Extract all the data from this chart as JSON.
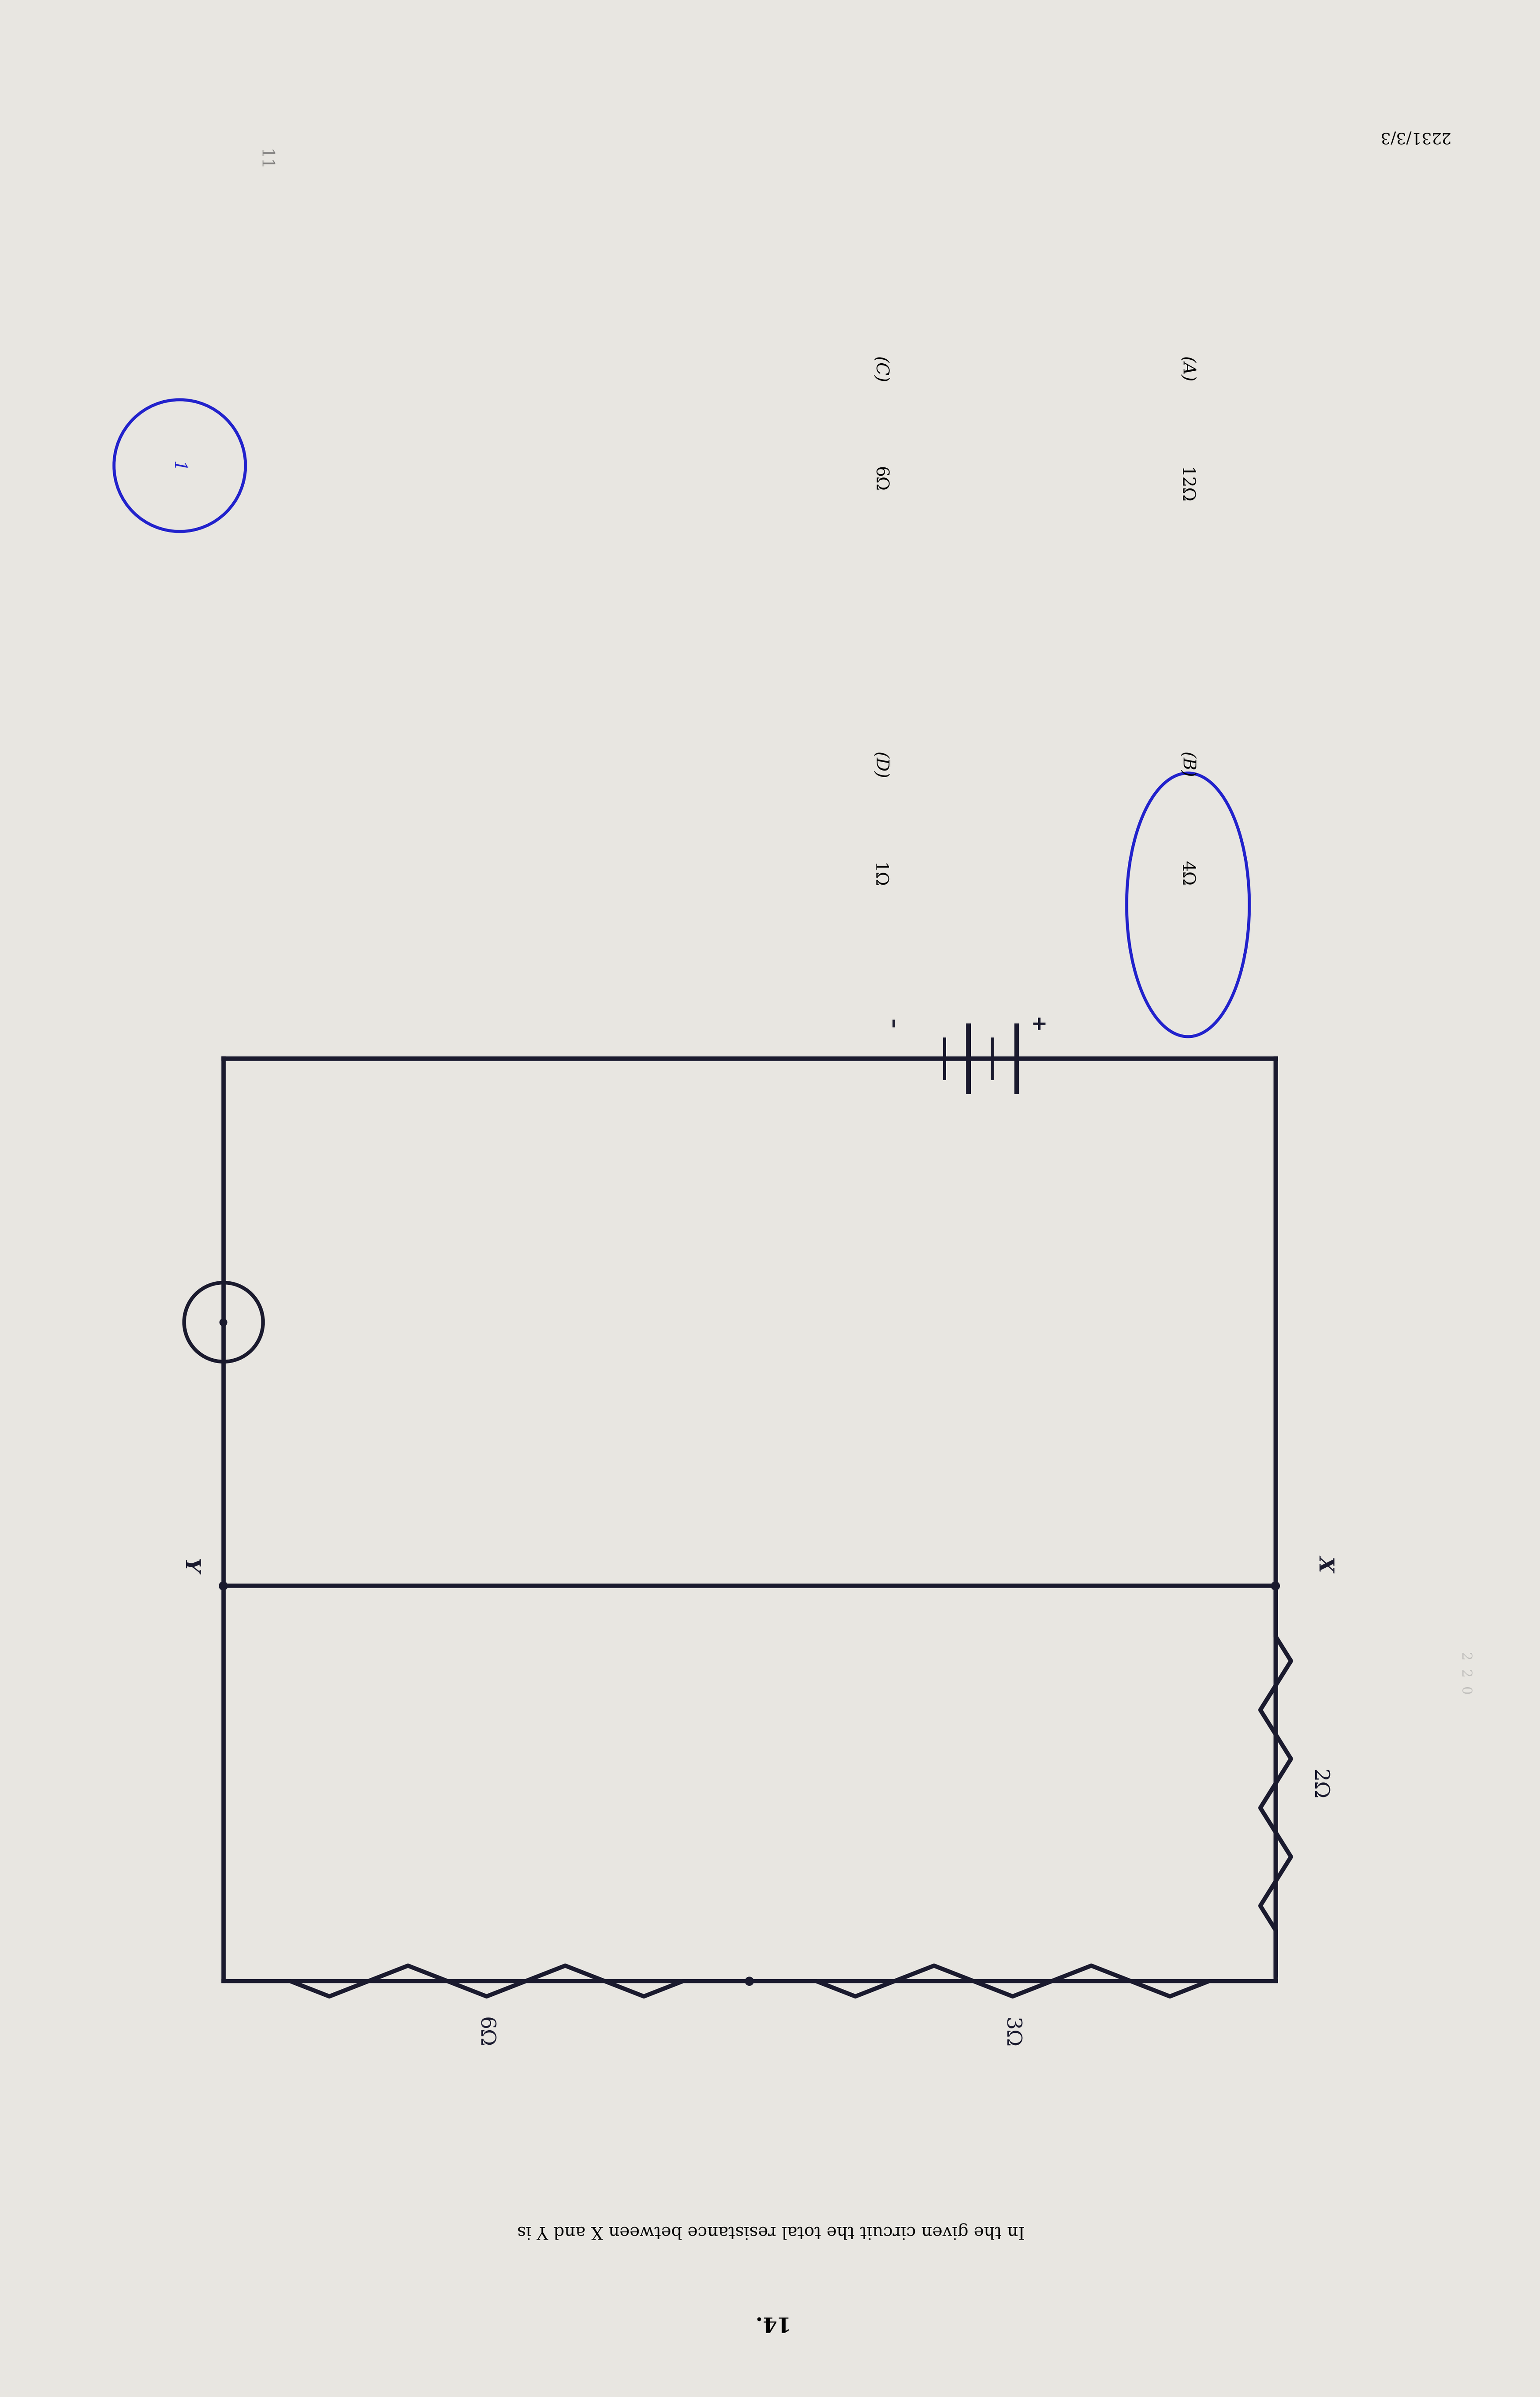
{
  "bg_color": "#e8e6e1",
  "question_number": "14.",
  "question_text": "In the given circuit the total resistance between X and Y is",
  "options": [
    {
      "label": "(A)",
      "value": "12Ω"
    },
    {
      "label": "(B)",
      "value": "4Ω"
    },
    {
      "label": "(C)",
      "value": "6Ω"
    },
    {
      "label": "(D)",
      "value": "1Ω"
    }
  ],
  "page_number": "2231/3/3",
  "rotation_deg": 90
}
